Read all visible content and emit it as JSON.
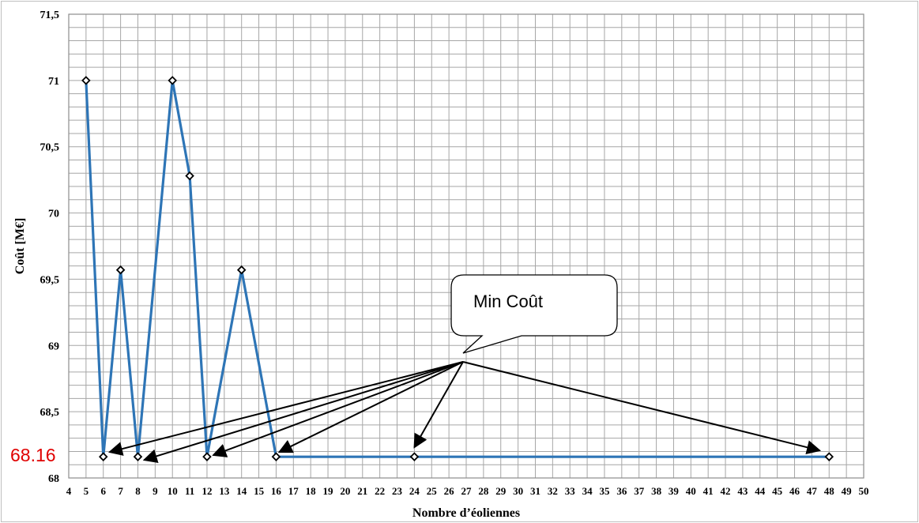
{
  "chart_data": {
    "type": "line",
    "xlabel": "Nombre d’éoliennes",
    "ylabel": "Coût [M€]",
    "xlim": [
      4,
      50
    ],
    "ylim": [
      68,
      71.5
    ],
    "x_ticks": [
      "4",
      "5",
      "6",
      "7",
      "8",
      "9",
      "10",
      "11",
      "12",
      "13",
      "14",
      "15",
      "16",
      "17",
      "18",
      "19",
      "20",
      "21",
      "22",
      "23",
      "24",
      "25",
      "26",
      "27",
      "28",
      "29",
      "30",
      "31",
      "32",
      "33",
      "34",
      "35",
      "36",
      "37",
      "38",
      "39",
      "40",
      "41",
      "42",
      "43",
      "44",
      "45",
      "46",
      "47",
      "48",
      "49",
      "50"
    ],
    "y_ticks": [
      "68",
      "68,5",
      "69",
      "69,5",
      "70",
      "70,5",
      "71",
      "71,5"
    ],
    "grid": true,
    "series": [
      {
        "x": [
          5,
          6,
          7,
          8,
          10,
          11,
          12,
          14,
          16,
          24,
          48
        ],
        "y": [
          71,
          68.16,
          69.57,
          68.16,
          71,
          70.28,
          68.16,
          69.57,
          68.16,
          68.16,
          68.16
        ],
        "color": "#2e75b6"
      }
    ],
    "annotations": {
      "callout_text": "Min Coût",
      "min_value_label": "68.16",
      "min_value_color": "#e00000",
      "arrow_targets_x": [
        6,
        8,
        12,
        16,
        24,
        48
      ],
      "arrow_targets_y": 68.16
    }
  }
}
